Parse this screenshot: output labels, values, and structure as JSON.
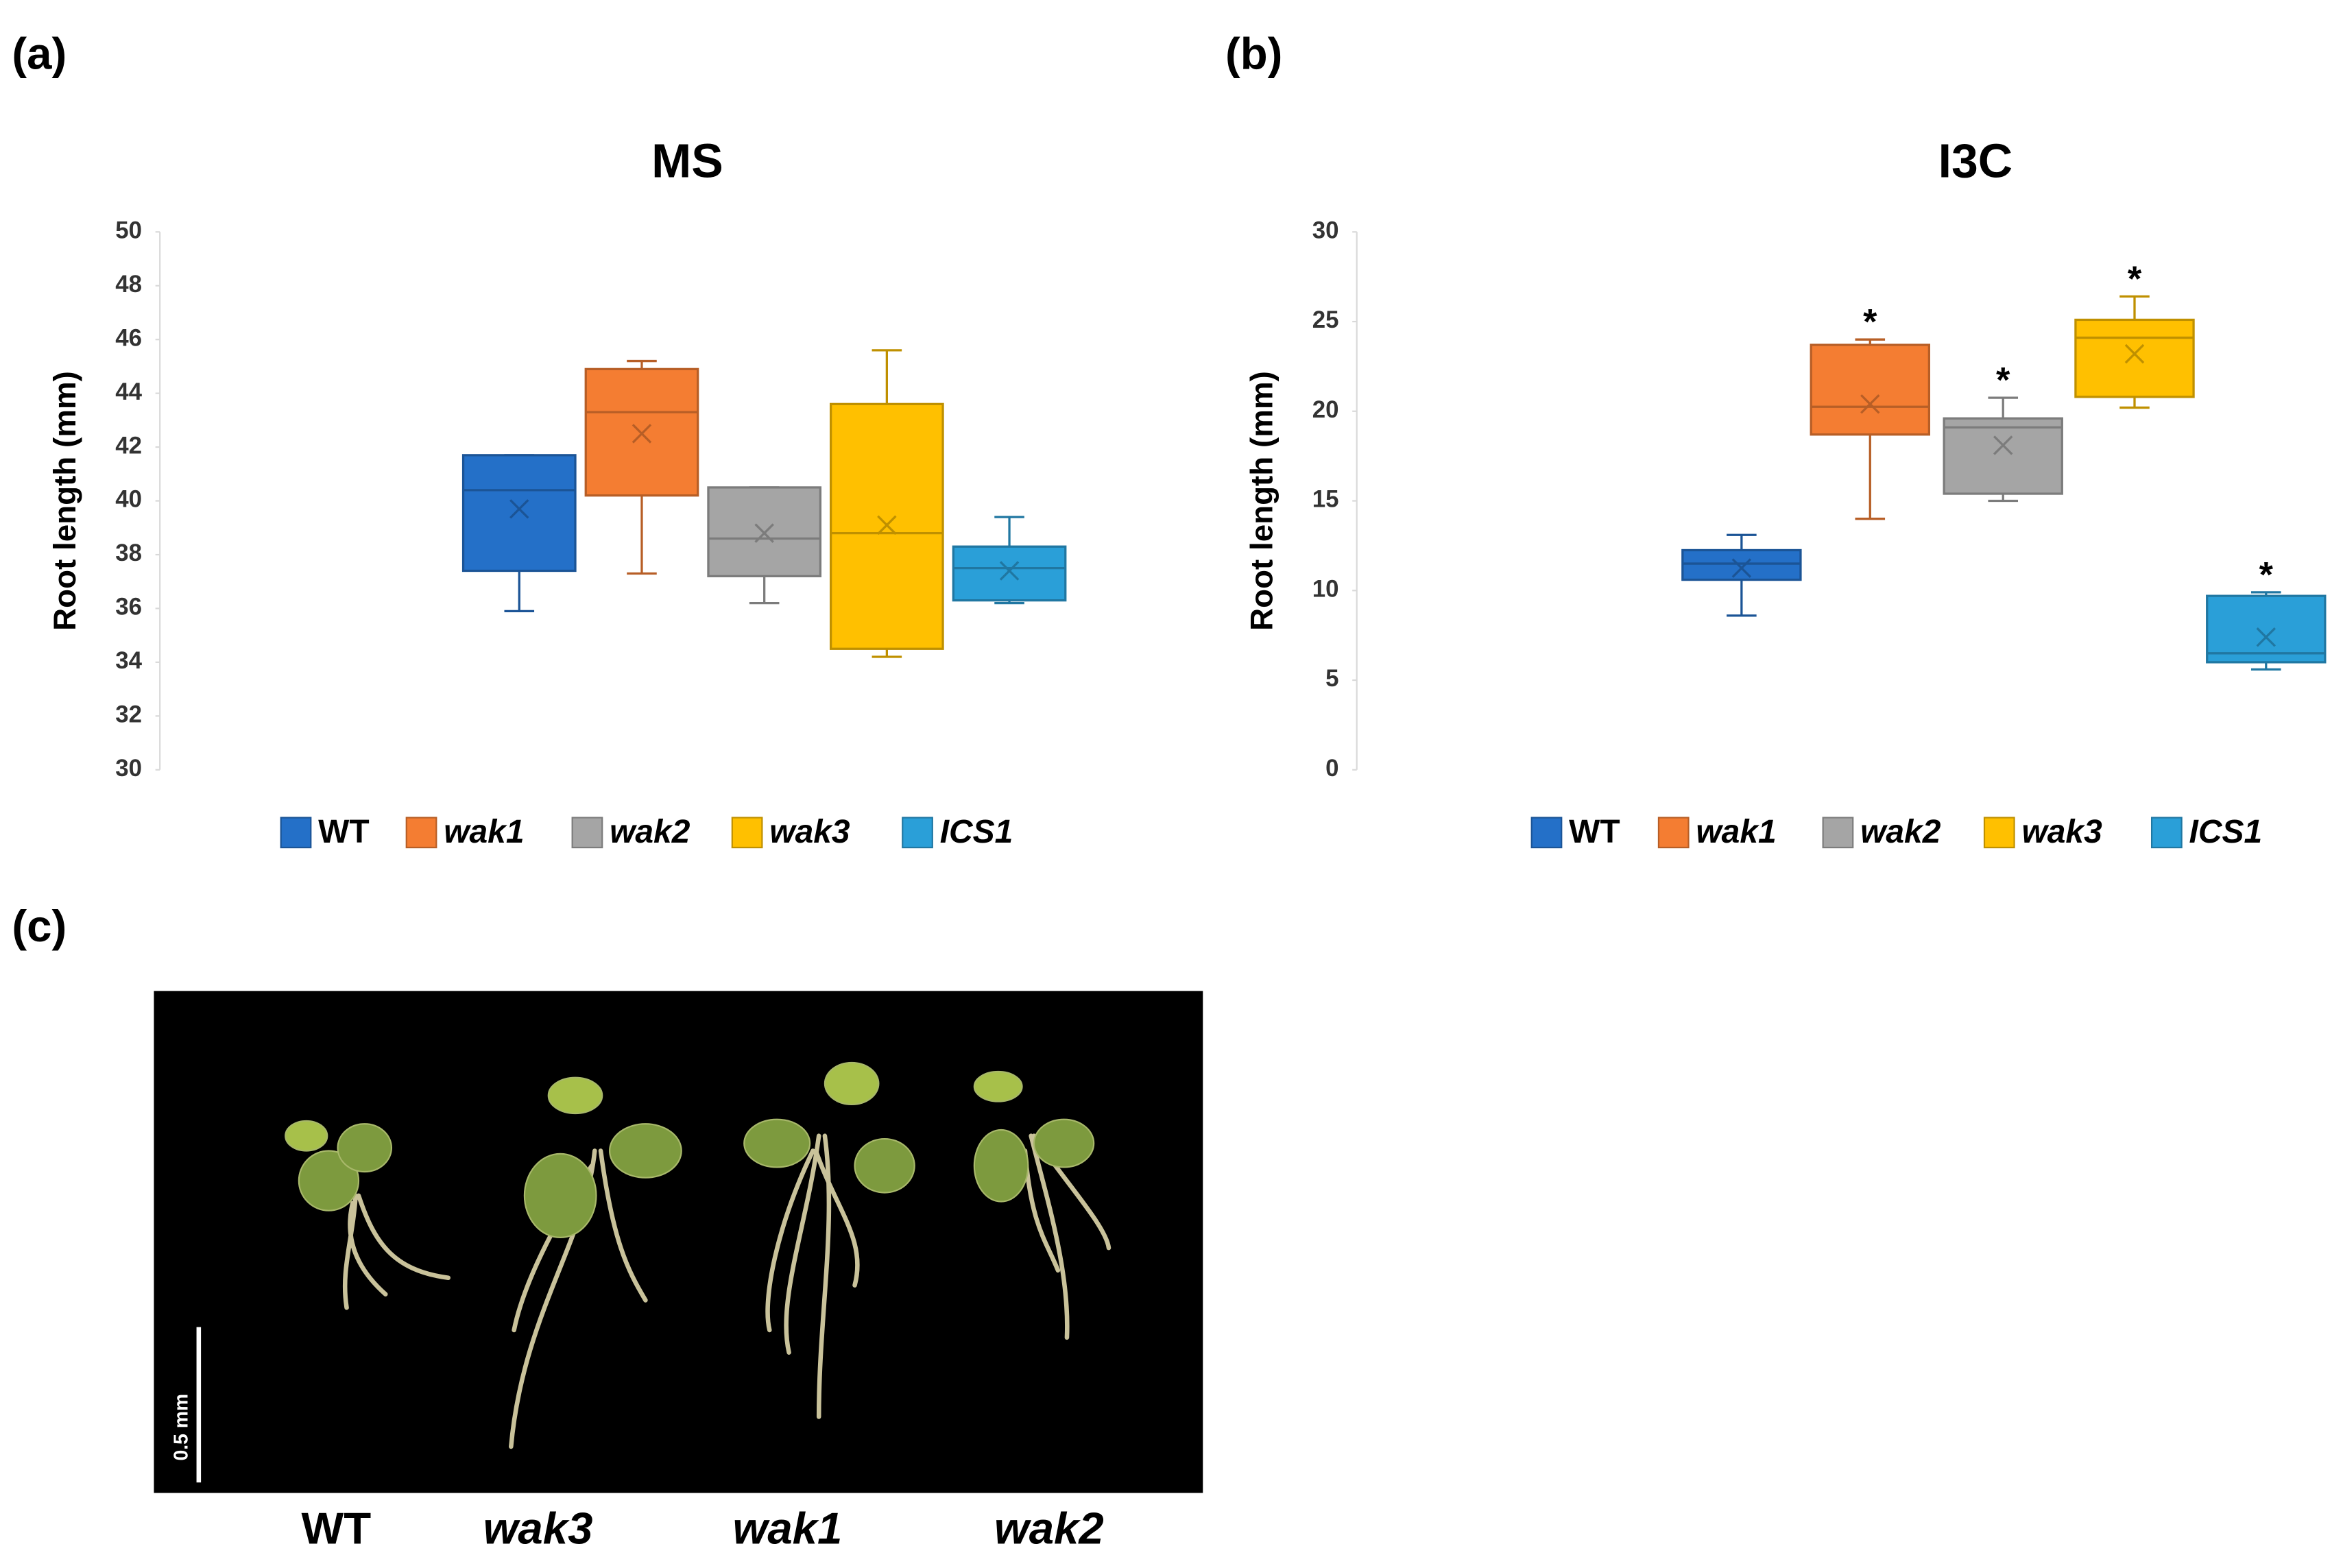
{
  "chart_data": [
    {
      "type": "box",
      "panel": "(a)",
      "title": "MS",
      "ylabel": "Root length (mm)",
      "ylim": [
        30,
        50
      ],
      "yticks": [
        30,
        32,
        34,
        36,
        38,
        40,
        42,
        44,
        46,
        48,
        50
      ],
      "series": [
        {
          "name": "WT",
          "color": "#2470c8",
          "min": 35.9,
          "q1": 37.4,
          "median": 40.4,
          "q3": 41.7,
          "max": 41.7,
          "mean": 39.7
        },
        {
          "name": "wak1",
          "color": "#f47d32",
          "min": 37.3,
          "q1": 40.2,
          "median": 43.3,
          "q3": 44.9,
          "max": 45.2,
          "mean": 42.5
        },
        {
          "name": "wak2",
          "color": "#a5a5a5",
          "min": 36.2,
          "q1": 37.2,
          "median": 38.6,
          "q3": 40.5,
          "max": 40.5,
          "mean": 38.8
        },
        {
          "name": "wak3",
          "color": "#ffc000",
          "min": 34.2,
          "q1": 34.5,
          "median": 38.8,
          "q3": 43.6,
          "max": 45.6,
          "mean": 39.1
        },
        {
          "name": "ICS1",
          "color": "#2a9fd8",
          "min": 36.2,
          "q1": 36.3,
          "median": 37.5,
          "q3": 38.3,
          "max": 39.4,
          "mean": 37.4
        }
      ]
    },
    {
      "type": "box",
      "panel": "(b)",
      "title": "I3C",
      "ylabel": "Root length (mm)",
      "ylim": [
        0,
        30
      ],
      "yticks": [
        0,
        5,
        10,
        15,
        20,
        25,
        30
      ],
      "series": [
        {
          "name": "WT",
          "color": "#2470c8",
          "min": 8.6,
          "q1": 10.6,
          "median": 11.5,
          "q3": 12.25,
          "max": 13.1,
          "mean": 11.25
        },
        {
          "name": "wak1",
          "color": "#f47d32",
          "min": 14,
          "q1": 18.7,
          "median": 20.25,
          "q3": 23.7,
          "max": 24,
          "mean": 20.4,
          "annotation": "*"
        },
        {
          "name": "wak2",
          "color": "#a5a5a5",
          "min": 15,
          "q1": 15.4,
          "median": 19.1,
          "q3": 19.6,
          "max": 20.75,
          "mean": 18.1,
          "annotation": "*"
        },
        {
          "name": "wak3",
          "color": "#ffc000",
          "min": 20.2,
          "q1": 20.8,
          "median": 24.1,
          "q3": 25.1,
          "max": 26.4,
          "mean": 23.2,
          "annotation": "*"
        },
        {
          "name": "ICS1",
          "color": "#2a9fd8",
          "min": 5.6,
          "q1": 6,
          "median": 6.5,
          "q3": 9.7,
          "max": 9.9,
          "mean": 7.4,
          "annotation": "*"
        }
      ]
    }
  ],
  "photo": {
    "panel": "(c)",
    "scale_label": "0.5 mm",
    "labels": [
      "WT",
      "wak3",
      "wak1",
      "wak2"
    ]
  }
}
